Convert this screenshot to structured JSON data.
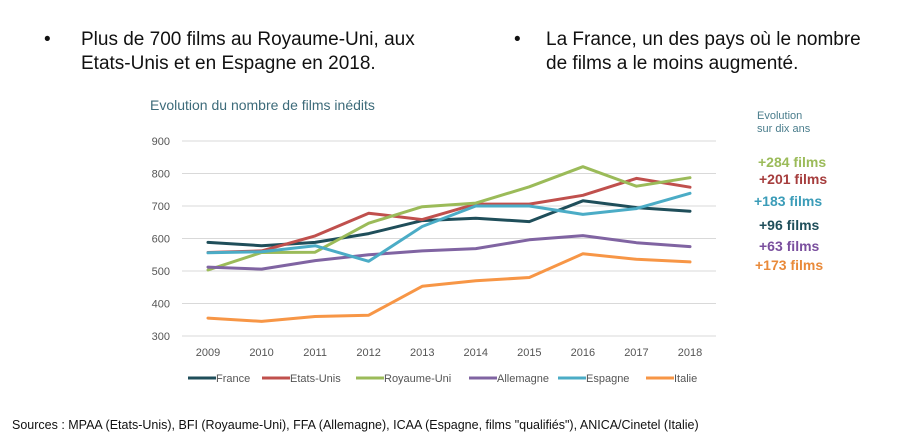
{
  "bullets": [
    {
      "text": "Plus de 700 films au Royaume-Uni, aux\nEtats-Unis et en Espagne en 2018."
    },
    {
      "text": "La France, un des pays où le nombre\nde films a le moins augmenté."
    }
  ],
  "bullet_glyph": "•",
  "evolution": {
    "heading": "Evolution\nsur dix ans",
    "items": [
      {
        "label": "+284 films",
        "series": "Royaume-Uni",
        "color": "#9bbb59"
      },
      {
        "label": "+201 films",
        "series": "Etats-Unis",
        "color": "#a63d3d"
      },
      {
        "label": "+183 films",
        "series": "Espagne",
        "color": "#3b9cb8"
      },
      {
        "label": "+96 films",
        "series": "France",
        "color": "#1f4e5a"
      },
      {
        "label": "+63 films",
        "series": "Allemagne",
        "color": "#7a4f9e"
      },
      {
        "label": "+173 films",
        "series": "Italie",
        "color": "#e98a3a"
      }
    ]
  },
  "sources": "Sources :  MPAA (Etats-Unis), BFI (Royaume-Uni), FFA (Allemagne), ICAA (Espagne, films \"qualifiés\"), ANICA/Cinetel (Italie)",
  "chart_data": {
    "type": "line",
    "title": "Evolution du nombre de films inédits",
    "xlabel": "",
    "ylabel": "",
    "x": [
      "2009",
      "2010",
      "2011",
      "2012",
      "2013",
      "2014",
      "2015",
      "2016",
      "2017",
      "2018"
    ],
    "ylim": [
      300,
      900
    ],
    "yticks": [
      300,
      400,
      500,
      600,
      700,
      800,
      900
    ],
    "grid": true,
    "legend_position": "bottom",
    "series": [
      {
        "name": "France",
        "color": "#1f4e5a",
        "values": [
          588,
          578,
          588,
          615,
          655,
          662,
          652,
          716,
          695,
          684
        ]
      },
      {
        "name": "Etats-Unis",
        "color": "#c0504d",
        "values": [
          557,
          562,
          608,
          678,
          658,
          706,
          706,
          733,
          785,
          758
        ]
      },
      {
        "name": "Royaume-Uni",
        "color": "#9bbb59",
        "values": [
          503,
          557,
          558,
          647,
          698,
          709,
          759,
          821,
          761,
          787
        ]
      },
      {
        "name": "Allemagne",
        "color": "#8064a2",
        "values": [
          512,
          506,
          532,
          550,
          562,
          569,
          596,
          609,
          587,
          575
        ]
      },
      {
        "name": "Espagne",
        "color": "#4bacc6",
        "values": [
          556,
          559,
          578,
          530,
          637,
          700,
          700,
          674,
          692,
          739
        ]
      },
      {
        "name": "Italie",
        "color": "#f79646",
        "values": [
          355,
          345,
          360,
          364,
          453,
          470,
          480,
          553,
          536,
          528
        ]
      }
    ]
  }
}
